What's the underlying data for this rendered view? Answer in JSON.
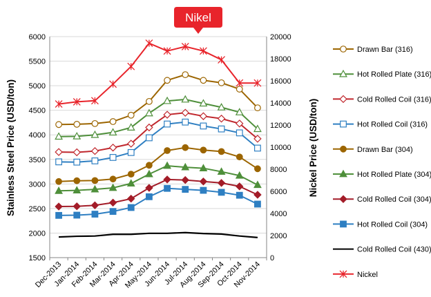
{
  "chart_data": {
    "type": "line",
    "title": "",
    "categories": [
      "Dec-2013",
      "Jan-2014",
      "Feb-2014",
      "Mar-2014",
      "Apr-2014",
      "May-2014",
      "Jun-2014",
      "Jul-2014",
      "Aug-2014",
      "Sep-2014",
      "Oct-2014",
      "Nov-2014"
    ],
    "y_left": {
      "label": "Stainless Steel Price (USD/ton)",
      "min": 1500,
      "max": 6000,
      "step": 500
    },
    "y_right": {
      "label": "Nickel Price (USD/ton)",
      "min": 0,
      "max": 20000,
      "step": 2000
    },
    "grid": true,
    "legend_position": "right",
    "series": [
      {
        "name": "Drawn Bar (316)",
        "axis": "left",
        "color": "#9C6500",
        "marker": "circle-open",
        "values": [
          4210,
          4215,
          4230,
          4270,
          4400,
          4680,
          5110,
          5225,
          5110,
          5060,
          4930,
          4550
        ]
      },
      {
        "name": "Hot Rolled Plate (316)",
        "axis": "left",
        "color": "#4E8F3A",
        "marker": "triangle-open",
        "values": [
          3965,
          3970,
          4000,
          4050,
          4150,
          4440,
          4690,
          4720,
          4640,
          4560,
          4460,
          4120
        ]
      },
      {
        "name": "Cold Rolled Coil (316)",
        "axis": "left",
        "color": "#C0272D",
        "marker": "diamond-open",
        "values": [
          3650,
          3645,
          3670,
          3740,
          3820,
          4150,
          4410,
          4450,
          4380,
          4330,
          4230,
          3920
        ]
      },
      {
        "name": "Hot Rolled Coil (316)",
        "axis": "left",
        "color": "#2E7FC2",
        "marker": "square-open",
        "values": [
          3450,
          3445,
          3470,
          3540,
          3640,
          3940,
          4220,
          4260,
          4180,
          4120,
          4040,
          3730
        ]
      },
      {
        "name": "Drawn Bar (304)",
        "axis": "left",
        "color": "#9C6500",
        "marker": "circle",
        "values": [
          3050,
          3065,
          3070,
          3100,
          3200,
          3380,
          3680,
          3740,
          3690,
          3660,
          3550,
          3310
        ]
      },
      {
        "name": "Hot Rolled Plate (304)",
        "axis": "left",
        "color": "#4E8F3A",
        "marker": "triangle",
        "values": [
          2860,
          2870,
          2890,
          2920,
          3010,
          3200,
          3370,
          3340,
          3320,
          3250,
          3170,
          2980
        ]
      },
      {
        "name": "Cold Rolled Coil (304)",
        "axis": "left",
        "color": "#A31C28",
        "marker": "diamond",
        "values": [
          2540,
          2545,
          2565,
          2620,
          2700,
          2920,
          3090,
          3080,
          3050,
          3020,
          2950,
          2780
        ]
      },
      {
        "name": "Hot Rolled Coil (304)",
        "axis": "left",
        "color": "#2E7FC2",
        "marker": "square",
        "values": [
          2360,
          2365,
          2385,
          2440,
          2520,
          2740,
          2910,
          2890,
          2870,
          2830,
          2770,
          2590
        ]
      },
      {
        "name": "Cold Rolled Coil (430)",
        "axis": "left",
        "color": "#000000",
        "marker": "none",
        "values": [
          1920,
          1935,
          1940,
          1975,
          1975,
          1995,
          1995,
          2010,
          1990,
          1980,
          1940,
          1910
        ]
      },
      {
        "name": "Nickel",
        "axis": "right",
        "color": "#E8242B",
        "marker": "star",
        "values": [
          13900,
          14100,
          14200,
          15700,
          17300,
          19400,
          18700,
          19100,
          18700,
          17900,
          15800,
          15800
        ]
      }
    ],
    "annotation": {
      "text": "Nikel",
      "color": "#E8242B"
    }
  }
}
